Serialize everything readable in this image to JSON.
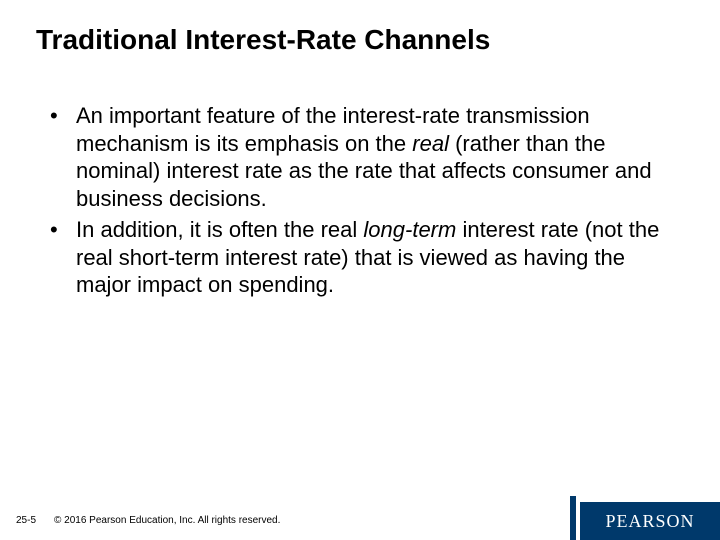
{
  "colors": {
    "background": "#ffffff",
    "text": "#000000",
    "logo_bg": "#00396b",
    "logo_text": "#ffffff"
  },
  "typography": {
    "title_fontsize": 28,
    "body_fontsize": 22,
    "footer_fontsize": 10,
    "font_family": "Verdana"
  },
  "title": "Traditional Interest-Rate Channels",
  "bullets": [
    {
      "pre": "An important feature of the interest-rate transmission mechanism is its emphasis on the ",
      "em": "real",
      "post": " (rather than the nominal) interest rate as the rate that affects consumer and business decisions."
    },
    {
      "pre": "In addition, it is often the real ",
      "em": "long-term",
      "post": " interest rate (not the real short-term interest rate) that is viewed as having the major impact on spending."
    }
  ],
  "footer": {
    "page": "25-5",
    "copyright": "© 2016 Pearson Education, Inc. All rights reserved."
  },
  "logo": "PEARSON"
}
